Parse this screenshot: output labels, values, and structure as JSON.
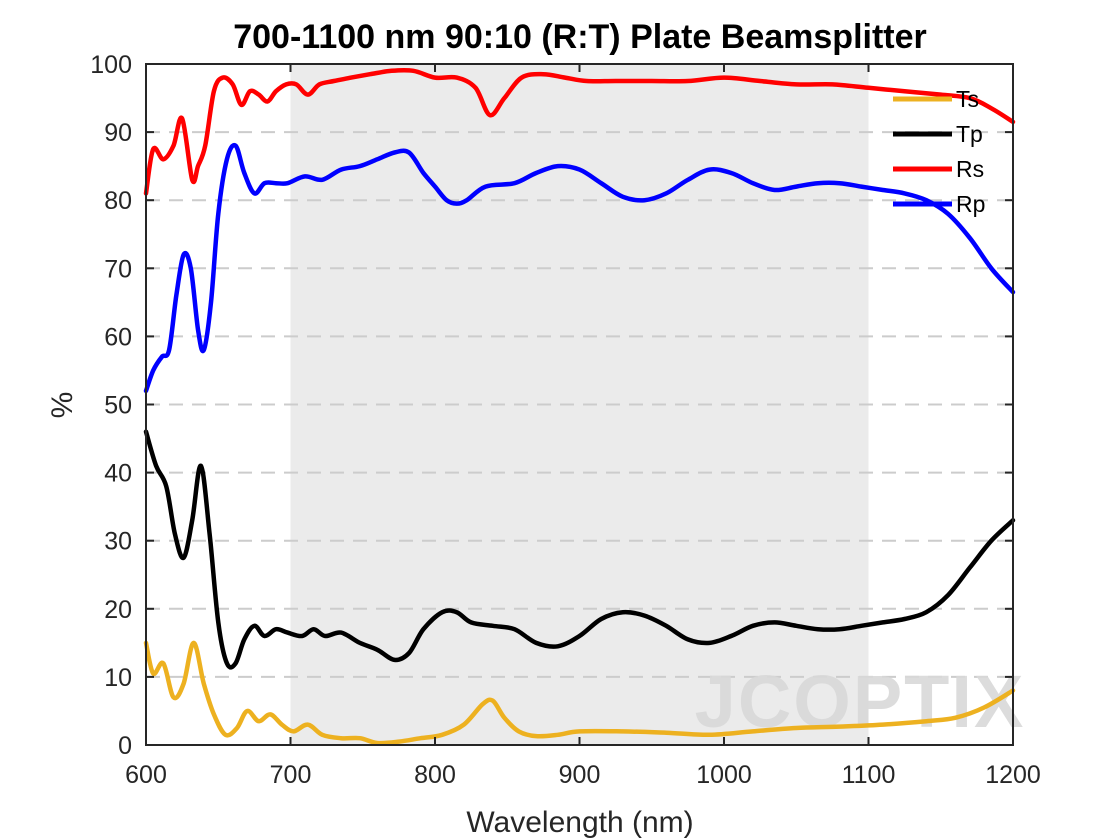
{
  "chart_data": {
    "type": "line",
    "title": "700-1100 nm 90:10 (R:T) Plate Beamsplitter",
    "xlabel": "Wavelength (nm)",
    "ylabel": "%",
    "xlim": [
      600,
      1200
    ],
    "ylim": [
      0,
      100
    ],
    "xticks": [
      600,
      700,
      800,
      900,
      1000,
      1100,
      1200
    ],
    "yticks": [
      0,
      10,
      20,
      30,
      40,
      50,
      60,
      70,
      80,
      90,
      100
    ],
    "grid": "horizontal dashed",
    "legend_position": "top-right",
    "highlight_band": [
      700,
      1100
    ],
    "watermark": "JCOPTIX",
    "series": [
      {
        "name": "Ts",
        "color": "#edb120",
        "points": [
          [
            600,
            15
          ],
          [
            605,
            10.5
          ],
          [
            612,
            12
          ],
          [
            619,
            7
          ],
          [
            626,
            9
          ],
          [
            633,
            15
          ],
          [
            640,
            9
          ],
          [
            647,
            4.5
          ],
          [
            655,
            1.5
          ],
          [
            663,
            2.5
          ],
          [
            670,
            5
          ],
          [
            678,
            3.5
          ],
          [
            686,
            4.5
          ],
          [
            694,
            3
          ],
          [
            702,
            2
          ],
          [
            712,
            3
          ],
          [
            722,
            1.5
          ],
          [
            735,
            1
          ],
          [
            748,
            1
          ],
          [
            760,
            0.3
          ],
          [
            775,
            0.5
          ],
          [
            790,
            1
          ],
          [
            805,
            1.5
          ],
          [
            820,
            3
          ],
          [
            833,
            6
          ],
          [
            840,
            6.5
          ],
          [
            848,
            4
          ],
          [
            858,
            2
          ],
          [
            870,
            1.3
          ],
          [
            885,
            1.5
          ],
          [
            900,
            2
          ],
          [
            930,
            2
          ],
          [
            960,
            1.8
          ],
          [
            990,
            1.5
          ],
          [
            1020,
            2
          ],
          [
            1050,
            2.5
          ],
          [
            1080,
            2.7
          ],
          [
            1110,
            3
          ],
          [
            1140,
            3.5
          ],
          [
            1160,
            4
          ],
          [
            1180,
            5.5
          ],
          [
            1200,
            8
          ]
        ]
      },
      {
        "name": "Tp",
        "color": "#000000",
        "points": [
          [
            600,
            46
          ],
          [
            607,
            41
          ],
          [
            614,
            38
          ],
          [
            620,
            31
          ],
          [
            626,
            27.5
          ],
          [
            632,
            33
          ],
          [
            638,
            41
          ],
          [
            644,
            31
          ],
          [
            650,
            18
          ],
          [
            656,
            12
          ],
          [
            662,
            12
          ],
          [
            668,
            15.5
          ],
          [
            675,
            17.5
          ],
          [
            682,
            16
          ],
          [
            690,
            17
          ],
          [
            698,
            16.5
          ],
          [
            708,
            16
          ],
          [
            716,
            17
          ],
          [
            724,
            16
          ],
          [
            735,
            16.5
          ],
          [
            748,
            15
          ],
          [
            760,
            14
          ],
          [
            772,
            12.5
          ],
          [
            782,
            13.5
          ],
          [
            792,
            17
          ],
          [
            805,
            19.5
          ],
          [
            815,
            19.5
          ],
          [
            825,
            18
          ],
          [
            840,
            17.5
          ],
          [
            855,
            17
          ],
          [
            870,
            15
          ],
          [
            885,
            14.5
          ],
          [
            900,
            16
          ],
          [
            915,
            18.5
          ],
          [
            930,
            19.5
          ],
          [
            945,
            19
          ],
          [
            960,
            17.5
          ],
          [
            975,
            15.5
          ],
          [
            990,
            15
          ],
          [
            1005,
            16
          ],
          [
            1020,
            17.5
          ],
          [
            1035,
            18
          ],
          [
            1050,
            17.5
          ],
          [
            1065,
            17
          ],
          [
            1080,
            17
          ],
          [
            1095,
            17.5
          ],
          [
            1110,
            18
          ],
          [
            1125,
            18.5
          ],
          [
            1140,
            19.5
          ],
          [
            1155,
            22
          ],
          [
            1170,
            26
          ],
          [
            1185,
            30
          ],
          [
            1200,
            33
          ]
        ]
      },
      {
        "name": "Rs",
        "color": "#ff0000",
        "points": [
          [
            600,
            81
          ],
          [
            605,
            87.5
          ],
          [
            612,
            86
          ],
          [
            619,
            88
          ],
          [
            625,
            92
          ],
          [
            632,
            83
          ],
          [
            636,
            85
          ],
          [
            641,
            88
          ],
          [
            647,
            96
          ],
          [
            653,
            98
          ],
          [
            660,
            97
          ],
          [
            666,
            94
          ],
          [
            672,
            96
          ],
          [
            678,
            95.5
          ],
          [
            684,
            94.5
          ],
          [
            690,
            96
          ],
          [
            697,
            97
          ],
          [
            704,
            97
          ],
          [
            712,
            95.5
          ],
          [
            720,
            97
          ],
          [
            730,
            97.5
          ],
          [
            742,
            98
          ],
          [
            755,
            98.5
          ],
          [
            770,
            99
          ],
          [
            785,
            99
          ],
          [
            800,
            98
          ],
          [
            815,
            98
          ],
          [
            828,
            96.5
          ],
          [
            838,
            92.5
          ],
          [
            848,
            95
          ],
          [
            860,
            98
          ],
          [
            875,
            98.5
          ],
          [
            890,
            98
          ],
          [
            905,
            97.5
          ],
          [
            925,
            97.5
          ],
          [
            950,
            97.5
          ],
          [
            975,
            97.5
          ],
          [
            1000,
            98
          ],
          [
            1025,
            97.5
          ],
          [
            1050,
            97
          ],
          [
            1075,
            97
          ],
          [
            1100,
            96.5
          ],
          [
            1125,
            96
          ],
          [
            1150,
            95.5
          ],
          [
            1170,
            95
          ],
          [
            1185,
            93.5
          ],
          [
            1200,
            91.5
          ]
        ]
      },
      {
        "name": "Rp",
        "color": "#0000ff",
        "points": [
          [
            600,
            52
          ],
          [
            605,
            55
          ],
          [
            611,
            57
          ],
          [
            616,
            58
          ],
          [
            621,
            66
          ],
          [
            626,
            72
          ],
          [
            631,
            70
          ],
          [
            636,
            61
          ],
          [
            640,
            58
          ],
          [
            645,
            65
          ],
          [
            650,
            78
          ],
          [
            656,
            86
          ],
          [
            662,
            88
          ],
          [
            668,
            84
          ],
          [
            675,
            81
          ],
          [
            682,
            82.5
          ],
          [
            690,
            82.5
          ],
          [
            698,
            82.5
          ],
          [
            710,
            83.5
          ],
          [
            722,
            83
          ],
          [
            735,
            84.5
          ],
          [
            748,
            85
          ],
          [
            760,
            86
          ],
          [
            772,
            87
          ],
          [
            782,
            87
          ],
          [
            792,
            84
          ],
          [
            800,
            82
          ],
          [
            808,
            80
          ],
          [
            815,
            79.5
          ],
          [
            822,
            80
          ],
          [
            835,
            82
          ],
          [
            855,
            82.5
          ],
          [
            870,
            84
          ],
          [
            885,
            85
          ],
          [
            900,
            84.5
          ],
          [
            915,
            82.5
          ],
          [
            930,
            80.5
          ],
          [
            945,
            80
          ],
          [
            960,
            81
          ],
          [
            975,
            83
          ],
          [
            990,
            84.5
          ],
          [
            1005,
            84
          ],
          [
            1020,
            82.5
          ],
          [
            1035,
            81.5
          ],
          [
            1050,
            82
          ],
          [
            1065,
            82.5
          ],
          [
            1080,
            82.5
          ],
          [
            1095,
            82
          ],
          [
            1110,
            81.5
          ],
          [
            1125,
            81
          ],
          [
            1140,
            80
          ],
          [
            1155,
            78
          ],
          [
            1170,
            74.5
          ],
          [
            1185,
            70
          ],
          [
            1200,
            66.5
          ]
        ]
      }
    ]
  }
}
